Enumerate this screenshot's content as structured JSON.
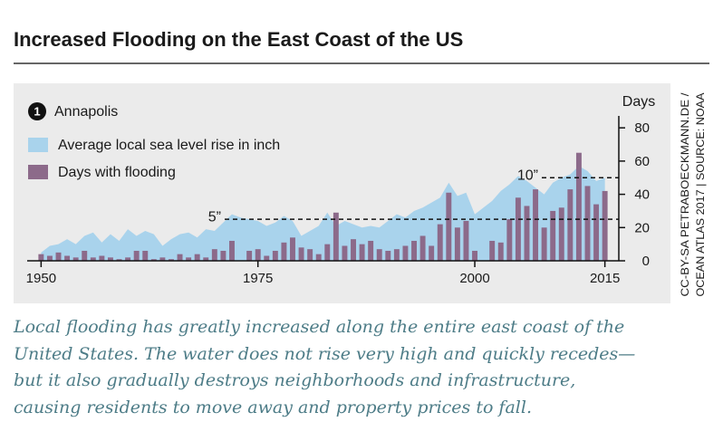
{
  "chart_data": {
    "type": "bar",
    "title": "Increased Flooding on the East Coast of the US",
    "location_number": "1",
    "location": "Annapolis",
    "y_axis_label": "Days",
    "credit": [
      "CC-BY-SA PETRABOECKMANN.DE /",
      "OCEAN ATLAS 2017 | SOURCE: NOAA"
    ],
    "caption": [
      "Local flooding has greatly increased along the entire east coast of the",
      "United States. The water does not rise very high and quickly recedes—",
      "but it also gradually destroys neighborhoods and infrastructure,",
      "causing residents to move away and property prices to fall."
    ],
    "x": [
      1950,
      1951,
      1952,
      1953,
      1954,
      1955,
      1956,
      1957,
      1958,
      1959,
      1960,
      1961,
      1962,
      1963,
      1964,
      1965,
      1966,
      1967,
      1968,
      1969,
      1970,
      1971,
      1972,
      1973,
      1974,
      1975,
      1976,
      1977,
      1978,
      1979,
      1980,
      1981,
      1982,
      1983,
      1984,
      1985,
      1986,
      1987,
      1988,
      1989,
      1990,
      1991,
      1992,
      1993,
      1994,
      1995,
      1996,
      1997,
      1998,
      1999,
      2000,
      2001,
      2002,
      2003,
      2004,
      2005,
      2006,
      2007,
      2008,
      2009,
      2010,
      2011,
      2012,
      2013,
      2014,
      2015
    ],
    "series": [
      {
        "name": "Average local sea level rise in inch",
        "type": "area",
        "axis": "y2",
        "color": "#a9d3ec",
        "values": [
          1.0,
          1.8,
          2.0,
          2.6,
          2.0,
          3.0,
          3.4,
          2.2,
          3.2,
          2.4,
          3.8,
          3.0,
          3.6,
          3.2,
          1.8,
          2.6,
          3.2,
          3.4,
          2.8,
          3.8,
          3.6,
          4.6,
          5.6,
          5.2,
          5.0,
          4.8,
          4.2,
          4.6,
          5.4,
          4.8,
          3.0,
          3.6,
          4.2,
          5.8,
          4.2,
          4.8,
          4.4,
          4.0,
          4.2,
          4.0,
          4.8,
          5.6,
          5.2,
          6.0,
          6.4,
          7.0,
          7.6,
          9.4,
          7.8,
          8.2,
          5.6,
          6.4,
          7.2,
          8.4,
          9.2,
          10.2,
          9.6,
          8.8,
          8.0,
          9.4,
          10.0,
          10.4,
          11.4,
          10.8,
          9.6,
          10.0
        ]
      },
      {
        "name": "Days with flooding",
        "type": "bar",
        "color": "#8c6a8a",
        "values": [
          4,
          3,
          5,
          3,
          2,
          6,
          2,
          3,
          2,
          1,
          2,
          6,
          6,
          1,
          2,
          1,
          4,
          2,
          4,
          2,
          7,
          6,
          12,
          0,
          6,
          7,
          3,
          6,
          11,
          14,
          8,
          7,
          4,
          10,
          29,
          9,
          13,
          10,
          12,
          7,
          6,
          7,
          9,
          12,
          15,
          9,
          22,
          41,
          20,
          24,
          6,
          0,
          12,
          11,
          25,
          38,
          33,
          43,
          20,
          30,
          32,
          43,
          65,
          45,
          34,
          42
        ]
      }
    ],
    "xlim": [
      1948.5,
      2016.5
    ],
    "xticks": [
      1950,
      1975,
      2000,
      2015
    ],
    "ylim": [
      0,
      85
    ],
    "yticks": [
      0,
      20,
      40,
      60,
      80
    ],
    "y2lim": [
      0,
      17
    ],
    "y2ticks": [
      {
        "value": 5,
        "label": "5”"
      },
      {
        "value": 10,
        "label": "10”"
      }
    ]
  }
}
